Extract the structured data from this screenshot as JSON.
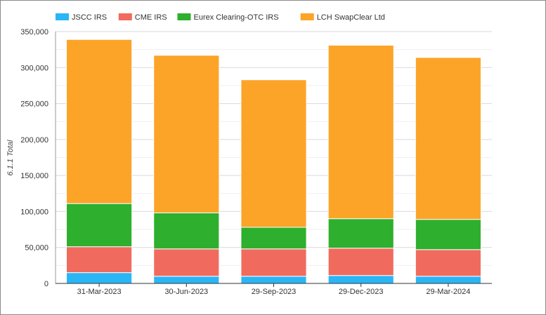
{
  "chart_data": {
    "type": "bar",
    "stacked": true,
    "categories": [
      "31-Mar-2023",
      "30-Jun-2023",
      "29-Sep-2023",
      "29-Dec-2023",
      "29-Mar-2024"
    ],
    "series": [
      {
        "name": "JSCC IRS",
        "color": "#29b6f6",
        "values": [
          15000,
          10000,
          10000,
          11000,
          10000
        ]
      },
      {
        "name": "CME IRS",
        "color": "#f06b5e",
        "values": [
          36000,
          38000,
          38000,
          38000,
          37000
        ]
      },
      {
        "name": "Eurex Clearing-OTC IRS",
        "color": "#2eaf2e",
        "values": [
          60000,
          50000,
          30000,
          41000,
          42000
        ]
      },
      {
        "name": "LCH SwapClear Ltd",
        "color": "#fca428",
        "values": [
          228000,
          219000,
          205000,
          241000,
          225000
        ]
      }
    ],
    "ylabel": "6.1.1 Total",
    "ylim": [
      0,
      350000
    ],
    "yticks": [
      "0",
      "50,000",
      "100,000",
      "150,000",
      "200,000",
      "250,000",
      "300,000",
      "350,000"
    ],
    "grid": true,
    "legend_position": "top-left"
  }
}
